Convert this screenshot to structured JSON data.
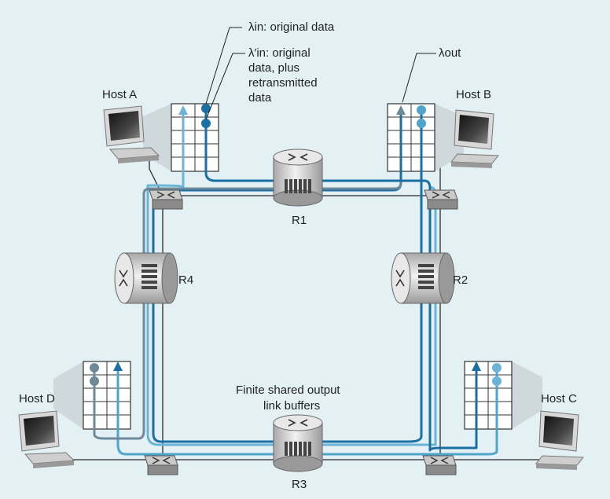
{
  "labels": {
    "lambda_in": "λin: original data",
    "lambda_in_prime_line1": "λ′in: original",
    "lambda_in_prime_line2": "data, plus",
    "lambda_in_prime_line3": "retransmitted",
    "lambda_in_prime_line4": "data",
    "lambda_out": "λout",
    "buffers_line1": "Finite shared output",
    "buffers_line2": "link buffers"
  },
  "hosts": {
    "a": "Host A",
    "b": "Host B",
    "c": "Host C",
    "d": "Host D"
  },
  "routers": {
    "r1": "R1",
    "r2": "R2",
    "r3": "R3",
    "r4": "R4"
  },
  "colors": {
    "background": "#e3f1f5",
    "dark_blue": "#1a6fa3",
    "light_blue": "#6cb4d6",
    "gray_blue": "#6e8a9a",
    "link": "#2b2b2b"
  }
}
